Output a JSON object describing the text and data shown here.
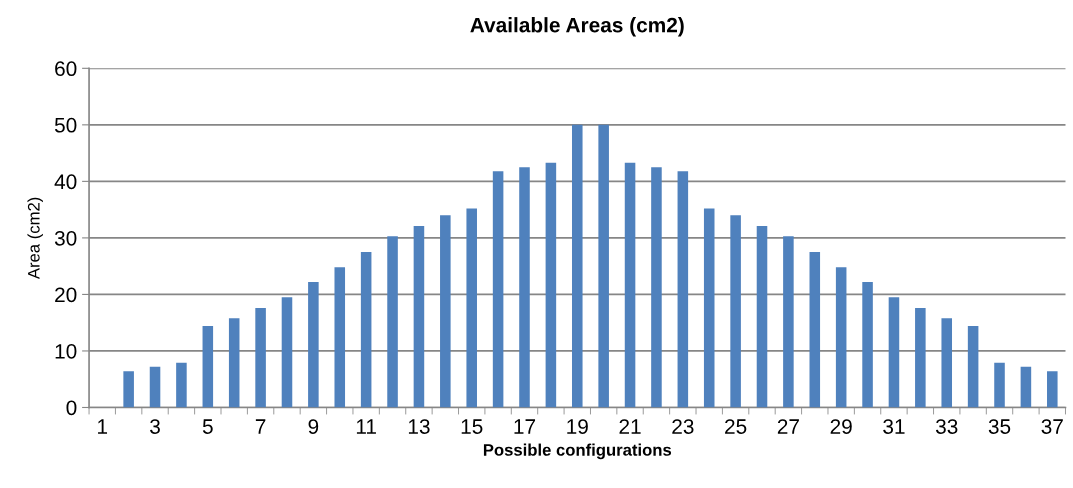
{
  "chart_data": {
    "type": "bar",
    "title": "Available Areas (cm2)",
    "xlabel": "Possible configurations",
    "ylabel": "Area (cm2)",
    "categories": [
      "1",
      null,
      "3",
      null,
      "5",
      null,
      "7",
      null,
      "9",
      null,
      "11",
      null,
      "13",
      null,
      "15",
      null,
      "17",
      null,
      "19",
      null,
      "21",
      null,
      "23",
      null,
      "25",
      null,
      "27",
      null,
      "29",
      null,
      "31",
      null,
      "33",
      null,
      "35",
      null,
      "37"
    ],
    "values": [
      null,
      6.4,
      7.2,
      7.9,
      14.4,
      15.8,
      17.6,
      19.5,
      22.2,
      24.8,
      27.5,
      30.3,
      32.1,
      34.0,
      35.2,
      41.8,
      42.5,
      43.3,
      50,
      50,
      43.3,
      42.5,
      41.8,
      35.2,
      34.0,
      32.1,
      30.3,
      27.5,
      24.8,
      22.2,
      19.5,
      17.6,
      15.8,
      14.4,
      7.9,
      7.2,
      6.4
    ],
    "color": "#4f81bd",
    "ylim": [
      0,
      60
    ],
    "yticks": [
      0,
      10,
      20,
      30,
      40,
      50,
      60
    ],
    "grid": "y"
  }
}
